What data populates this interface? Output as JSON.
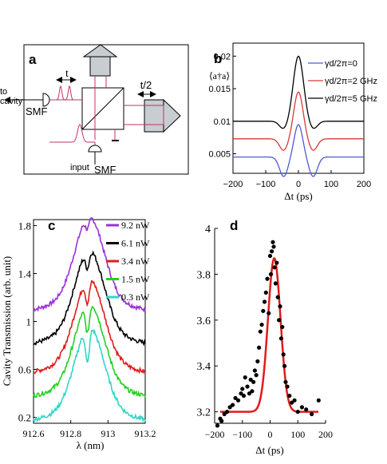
{
  "panel_a": {
    "label": "a",
    "t_label": "t",
    "t2_label": "t/2",
    "to_label": "to",
    "cavity_label": "cavity",
    "smf_label": "SMF",
    "input_label": "input",
    "input_smf_label": "SMF"
  },
  "chart_data": [
    {
      "id": "b",
      "label": "b",
      "type": "line",
      "xlabel": "Δt (ps)",
      "ylabel": "⟨a†a⟩",
      "xlim": [
        -200,
        200
      ],
      "ylim": [
        0.002,
        0.022
      ],
      "xticks": [
        -200,
        -100,
        0,
        100,
        200
      ],
      "xtick_labels": [
        "−200",
        "−100",
        "0",
        "100",
        "200"
      ],
      "yticks": [
        0.005,
        0.01,
        0.015,
        0.02
      ],
      "ytick_labels": [
        "0.005",
        "0.01",
        "0.015",
        "0.02"
      ],
      "legend_position": "top-right",
      "series": [
        {
          "name": "γd/2π=0",
          "color": "#4a5cd6",
          "baseline": 0.0045,
          "peak": 0.0095,
          "dip": -0.003,
          "sigma": 18
        },
        {
          "name": "γd/2π=2 GHz",
          "color": "#d63a3a",
          "baseline": 0.0073,
          "peak": 0.0145,
          "dip": -0.0018,
          "sigma": 20
        },
        {
          "name": "γd/2π=5 GHz",
          "color": "#000000",
          "baseline": 0.01,
          "peak": 0.02,
          "dip": -0.0012,
          "sigma": 22
        }
      ]
    },
    {
      "id": "c",
      "label": "c",
      "type": "line",
      "xlabel": "λ (nm)",
      "ylabel": "Cavity Transmission (arb. unit)",
      "xlim": [
        912.6,
        913.2
      ],
      "ylim": [
        0.15,
        1.85
      ],
      "xticks": [
        912.6,
        912.8,
        913.0,
        913.2
      ],
      "xtick_labels": [
        "912.6",
        "912.8",
        "913",
        "913.2"
      ],
      "yticks": [
        0.2,
        0.6,
        1.0,
        1.4,
        1.8
      ],
      "ytick_labels": [
        "0.2",
        "0.6",
        "1",
        "1.4",
        "1.8"
      ],
      "legend_position": "top-right",
      "series": [
        {
          "name": "9.2 nW",
          "color": "#9b30d9",
          "offset": 0.98
        },
        {
          "name": "6.1 nW",
          "color": "#000000",
          "offset": 0.7
        },
        {
          "name": "3.4 nW",
          "color": "#e01b1b",
          "offset": 0.46
        },
        {
          "name": "1.5 nW",
          "color": "#22d022",
          "offset": 0.26
        },
        {
          "name": "0.3 nW",
          "color": "#30d6c8",
          "offset": 0.06
        }
      ]
    },
    {
      "id": "d",
      "label": "d",
      "type": "scatter",
      "xlabel": "Δt (ps)",
      "ylabel": "",
      "xlim": [
        -200,
        200
      ],
      "ylim": [
        3.15,
        4.0
      ],
      "xticks": [
        -200,
        -100,
        0,
        100,
        200
      ],
      "xtick_labels": [
        "−200",
        "−100",
        "0",
        "100",
        "200"
      ],
      "yticks": [
        3.2,
        3.4,
        3.6,
        3.8,
        4.0
      ],
      "ytick_labels": [
        "3.2",
        "3.4",
        "3.6",
        "3.8",
        "4"
      ],
      "fit": {
        "color": "#e01b1b",
        "baseline": 3.2,
        "peak": 3.87,
        "center": 15,
        "sigma": 32
      },
      "points": [
        [
          -190,
          3.14
        ],
        [
          -180,
          3.17
        ],
        [
          -175,
          3.16
        ],
        [
          -165,
          3.19
        ],
        [
          -155,
          3.2
        ],
        [
          -145,
          3.22
        ],
        [
          -135,
          3.23
        ],
        [
          -125,
          3.26
        ],
        [
          -115,
          3.25
        ],
        [
          -105,
          3.28
        ],
        [
          -100,
          3.3
        ],
        [
          -95,
          3.27
        ],
        [
          -90,
          3.35
        ],
        [
          -82,
          3.31
        ],
        [
          -75,
          3.28
        ],
        [
          -70,
          3.34
        ],
        [
          -65,
          3.29
        ],
        [
          -60,
          3.33
        ],
        [
          -55,
          3.38
        ],
        [
          -50,
          3.36
        ],
        [
          -45,
          3.42
        ],
        [
          -40,
          3.48
        ],
        [
          -35,
          3.55
        ],
        [
          -30,
          3.58
        ],
        [
          -25,
          3.64
        ],
        [
          -20,
          3.68
        ],
        [
          -15,
          3.72
        ],
        [
          -10,
          3.78
        ],
        [
          -5,
          3.63
        ],
        [
          0,
          3.88
        ],
        [
          3,
          3.8
        ],
        [
          6,
          3.9
        ],
        [
          10,
          3.94
        ],
        [
          13,
          3.92
        ],
        [
          16,
          3.83
        ],
        [
          20,
          3.76
        ],
        [
          24,
          3.85
        ],
        [
          28,
          3.7
        ],
        [
          32,
          3.6
        ],
        [
          36,
          3.66
        ],
        [
          40,
          3.52
        ],
        [
          44,
          3.57
        ],
        [
          48,
          3.45
        ],
        [
          52,
          3.4
        ],
        [
          56,
          3.33
        ],
        [
          62,
          3.31
        ],
        [
          70,
          3.27
        ],
        [
          78,
          3.24
        ],
        [
          88,
          3.25
        ],
        [
          100,
          3.2
        ],
        [
          115,
          3.22
        ],
        [
          130,
          3.21
        ],
        [
          150,
          3.19
        ],
        [
          175,
          3.25
        ]
      ]
    }
  ]
}
